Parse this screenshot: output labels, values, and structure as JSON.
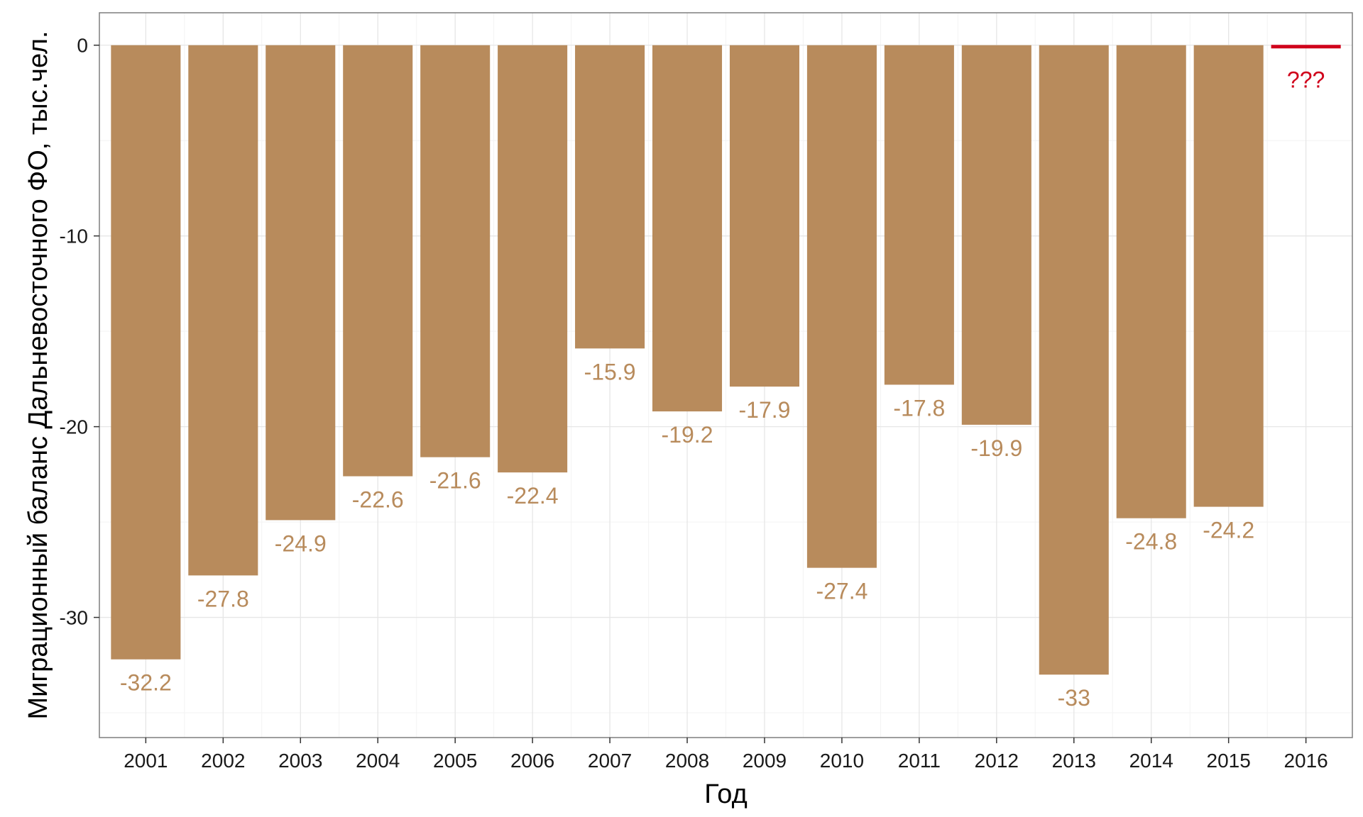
{
  "chart_data": {
    "type": "bar",
    "categories": [
      "2001",
      "2002",
      "2003",
      "2004",
      "2005",
      "2006",
      "2007",
      "2008",
      "2009",
      "2010",
      "2011",
      "2012",
      "2013",
      "2014",
      "2015",
      "2016"
    ],
    "values": [
      -32.2,
      -27.8,
      -24.9,
      -22.6,
      -21.6,
      -22.4,
      -15.9,
      -19.2,
      -17.9,
      -27.4,
      -17.8,
      -19.9,
      -33.0,
      -24.8,
      -24.2,
      null
    ],
    "data_labels": [
      "-32.2",
      "-27.8",
      "-24.9",
      "-22.6",
      "-21.6",
      "-22.4",
      "-15.9",
      "-19.2",
      "-17.9",
      "-27.4",
      "-17.8",
      "-19.9",
      "-33",
      "-24.8",
      "-24.2",
      "???"
    ],
    "title": "",
    "xlabel": "Год",
    "ylabel": "Миграционный баланс Дальневосточного ФО, тыс.чел.",
    "ylim": [
      -36.3,
      1.7
    ],
    "yticks": [
      0,
      -10,
      -20,
      -30
    ],
    "ytick_labels": [
      "0",
      "-10",
      "-20",
      "-30"
    ],
    "minor_yticks": [
      -5,
      -15,
      -25,
      -35
    ],
    "grid": true,
    "legend": "none",
    "unknown_category": "2016",
    "unknown_value": 0,
    "colors": {
      "bar": "#b88b5c",
      "label": "#b88b5c",
      "unknown": "#d0021b",
      "grid_major": "#e6e6e6",
      "grid_minor": "#f3f3f3",
      "panel_border": "#7f7f7f"
    }
  }
}
